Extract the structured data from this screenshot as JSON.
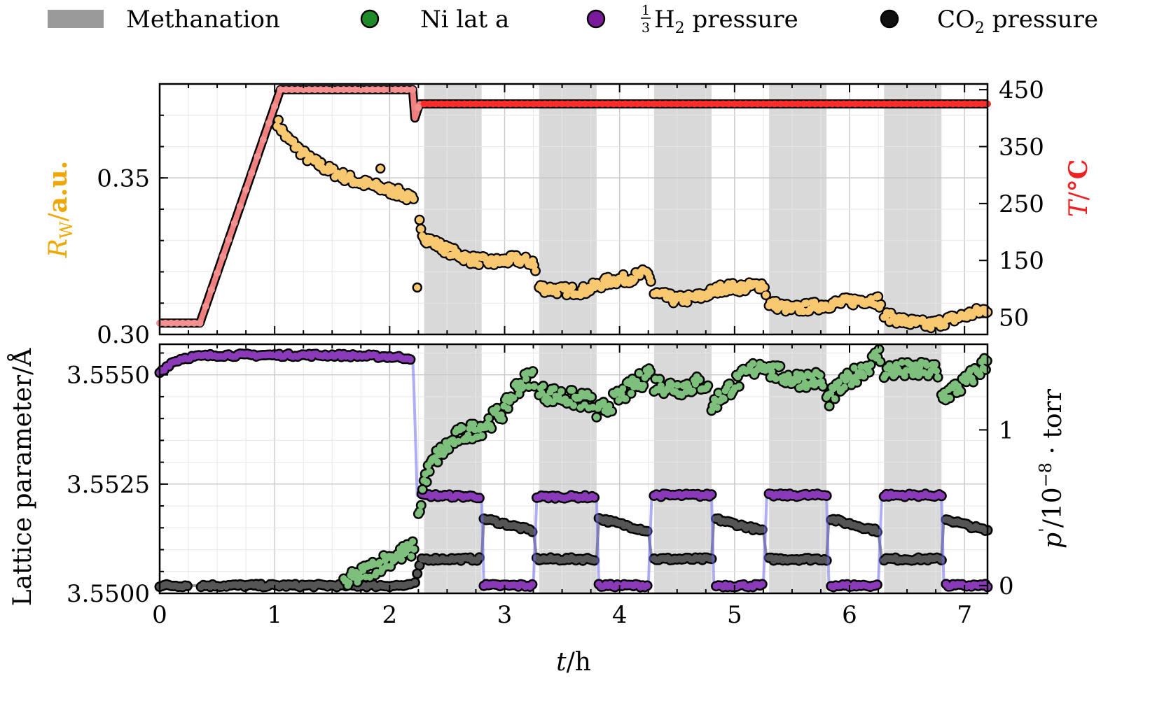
{
  "chart_data": {
    "type": "scatter",
    "x_axis": {
      "label_italic": "t",
      "label_unit": "h",
      "range": [
        0,
        7.2
      ],
      "ticks": [
        "0",
        "1",
        "2",
        "3",
        "4",
        "5",
        "6",
        "7"
      ],
      "tick_values": [
        0,
        1,
        2,
        3,
        4,
        5,
        6,
        7
      ]
    },
    "legend": {
      "placement": "top",
      "entries": [
        {
          "label": "Methanation",
          "color": "#9a9a9a",
          "kind": "patch"
        },
        {
          "label": "Ni lat a",
          "color": "#1e8a28",
          "kind": "marker"
        },
        {
          "label_frac": "1/3",
          "label_main": "H",
          "label_sub": "2",
          "label_tail": " pressure",
          "color": "#7a1a9a",
          "kind": "marker"
        },
        {
          "label_main": "CO",
          "label_sub": "2",
          "label_tail": " pressure",
          "color": "#111111",
          "kind": "marker"
        }
      ]
    },
    "methanation_intervals": [
      [
        2.3,
        2.8
      ],
      [
        3.3,
        3.8
      ],
      [
        4.3,
        4.8
      ],
      [
        5.3,
        5.8
      ],
      [
        6.3,
        6.8
      ]
    ],
    "top_panel": {
      "left_axis": {
        "label_italic": "R",
        "label_sub": "W",
        "label_unit": "a.u.",
        "color": "#f0a800",
        "range": [
          0.3,
          0.38
        ],
        "ticks": [
          "0.30",
          "0.35"
        ],
        "tick_values": [
          0.3,
          0.35
        ]
      },
      "right_axis": {
        "label_italic": "T",
        "label_unit": "°C",
        "color": "#ee2222",
        "range": [
          20,
          460
        ],
        "ticks": [
          "50",
          "150",
          "250",
          "350",
          "450"
        ],
        "tick_values": [
          50,
          150,
          250,
          350,
          450
        ]
      },
      "series": [
        {
          "name": "R_W",
          "color": "#f5c060",
          "axis": "left",
          "x": [
            1.02,
            1.1,
            1.3,
            1.5,
            1.7,
            1.9,
            2.1,
            2.2,
            2.25,
            2.3,
            2.5,
            2.7,
            2.9,
            3.1,
            3.25,
            3.3,
            3.5,
            3.7,
            3.9,
            4.1,
            4.25,
            4.3,
            4.5,
            4.7,
            4.9,
            5.1,
            5.25,
            5.3,
            5.5,
            5.7,
            5.9,
            6.1,
            6.25,
            6.3,
            6.5,
            6.7,
            6.9,
            7.1,
            7.2
          ],
          "y": [
            0.368,
            0.363,
            0.356,
            0.352,
            0.349,
            0.347,
            0.345,
            0.343,
            0.337,
            0.331,
            0.327,
            0.324,
            0.323,
            0.324,
            0.323,
            0.315,
            0.314,
            0.314,
            0.317,
            0.318,
            0.32,
            0.313,
            0.311,
            0.312,
            0.315,
            0.315,
            0.316,
            0.31,
            0.308,
            0.309,
            0.31,
            0.311,
            0.311,
            0.306,
            0.304,
            0.303,
            0.305,
            0.307,
            0.308
          ],
          "outliers": [
            [
              1.92,
              0.353
            ],
            [
              2.24,
              0.315
            ]
          ]
        },
        {
          "name": "T",
          "color": "#f07070",
          "axis": "right",
          "x": [
            0,
            0.25,
            0.35,
            1.05,
            2.2,
            2.22,
            2.26,
            7.2
          ],
          "y": [
            40,
            40,
            40,
            450,
            450,
            400,
            425,
            425
          ]
        }
      ]
    },
    "bottom_panel": {
      "left_axis": {
        "label": "Lattice parameter",
        "label_unit": "Å",
        "range": [
          3.55,
          3.5557
        ],
        "ticks": [
          "3.5500",
          "3.5525",
          "3.5550"
        ],
        "tick_values": [
          3.55,
          3.5525,
          3.555
        ]
      },
      "right_axis": {
        "label_italic": "p",
        "label_prime": "'",
        "label_unit_base": "10",
        "label_unit_exp": "−8",
        "label_unit_tail": "· torr",
        "range": [
          -0.05,
          1.55
        ],
        "ticks": [
          "0",
          "1"
        ],
        "tick_values": [
          0,
          1
        ]
      },
      "series": [
        {
          "name": "Ni lat a",
          "color": "#1e8a28",
          "axis": "left",
          "x": [
            1.6,
            1.8,
            2.0,
            2.2,
            2.25,
            2.3,
            2.4,
            2.6,
            2.8,
            3.0,
            3.1,
            3.2,
            3.25,
            3.3,
            3.5,
            3.7,
            3.75,
            3.8,
            4.0,
            4.2,
            4.25,
            4.3,
            4.5,
            4.7,
            4.75,
            4.8,
            5.0,
            5.2,
            5.25,
            5.3,
            5.5,
            5.7,
            5.75,
            5.8,
            6.0,
            6.2,
            6.25,
            6.3,
            6.5,
            6.7,
            6.75,
            6.8,
            7.0,
            7.2
          ],
          "y": [
            3.5502,
            3.5505,
            3.5508,
            3.551,
            3.5517,
            3.5526,
            3.5531,
            3.5536,
            3.5538,
            3.5542,
            3.5547,
            3.5549,
            3.555,
            3.5546,
            3.5545,
            3.5544,
            3.5544,
            3.5541,
            3.5545,
            3.5549,
            3.5551,
            3.5548,
            3.5547,
            3.5548,
            3.5548,
            3.5543,
            3.5548,
            3.5552,
            3.5553,
            3.5551,
            3.5549,
            3.5549,
            3.5549,
            3.5544,
            3.5549,
            3.5553,
            3.5555,
            3.5551,
            3.5551,
            3.5551,
            3.5551,
            3.5545,
            3.5548,
            3.5553
          ]
        },
        {
          "name": "1/3 H2 pressure",
          "color": "#7a1a9a",
          "axis": "right",
          "x": [
            0,
            0.1,
            0.2,
            0.3,
            0.5,
            1.0,
            1.5,
            2.0,
            2.2,
            2.21,
            2.24,
            2.28,
            2.8,
            2.82,
            3.25,
            3.28,
            3.8,
            3.82,
            4.25,
            4.28,
            4.8,
            4.82,
            5.25,
            5.28,
            5.8,
            5.82,
            6.25,
            6.28,
            6.8,
            6.82,
            7.2
          ],
          "y": [
            1.37,
            1.43,
            1.46,
            1.47,
            1.48,
            1.48,
            1.48,
            1.47,
            1.46,
            1.3,
            0.58,
            0.58,
            0.57,
            0.0,
            0.0,
            0.57,
            0.57,
            0.0,
            0.0,
            0.58,
            0.58,
            0.0,
            0.0,
            0.58,
            0.58,
            0.0,
            0.0,
            0.58,
            0.58,
            0.0,
            0.0
          ]
        },
        {
          "name": "CO2 pressure",
          "color": "#111111",
          "axis": "right",
          "x": [
            0,
            0.3,
            0.35,
            2.2,
            2.22,
            2.28,
            2.8,
            2.82,
            3.25,
            3.28,
            3.8,
            3.82,
            4.25,
            4.28,
            4.8,
            4.82,
            5.25,
            5.28,
            5.8,
            5.82,
            6.25,
            6.28,
            6.8,
            6.82,
            7.2
          ],
          "y": [
            0.0,
            0.0,
            0.0,
            0.0,
            0.02,
            0.17,
            0.17,
            0.43,
            0.35,
            0.17,
            0.17,
            0.43,
            0.35,
            0.17,
            0.17,
            0.43,
            0.35,
            0.17,
            0.17,
            0.43,
            0.35,
            0.17,
            0.17,
            0.43,
            0.35
          ]
        }
      ]
    }
  }
}
